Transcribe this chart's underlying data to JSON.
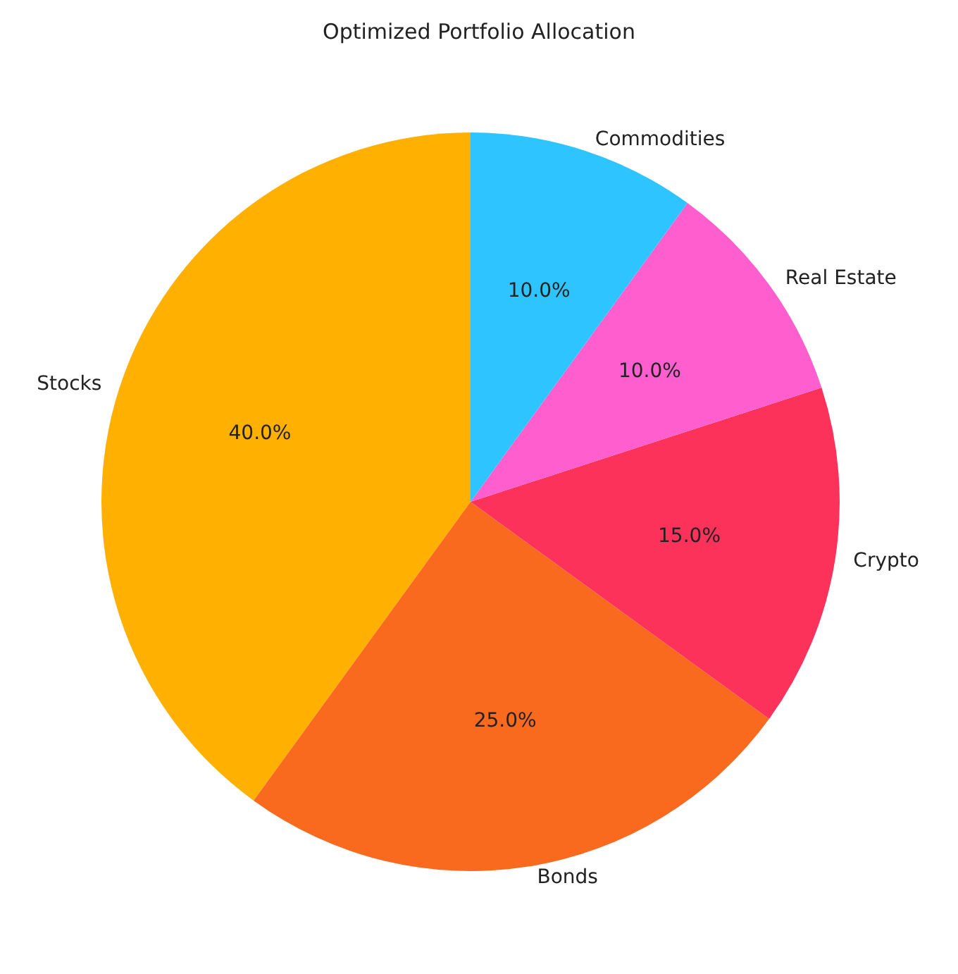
{
  "chart_data": {
    "type": "pie",
    "title": "Optimized Portfolio Allocation",
    "categories": [
      "Stocks",
      "Bonds",
      "Crypto",
      "Real Estate",
      "Commodities"
    ],
    "values": [
      40,
      25,
      15,
      10,
      10
    ],
    "colors": [
      "#ffb000",
      "#f96a1f",
      "#fc325a",
      "#ff5fce",
      "#2ec4ff"
    ],
    "value_labels": [
      "40.0%",
      "25.0%",
      "15.0%",
      "10.0%",
      "10.0%"
    ],
    "legend": false
  }
}
